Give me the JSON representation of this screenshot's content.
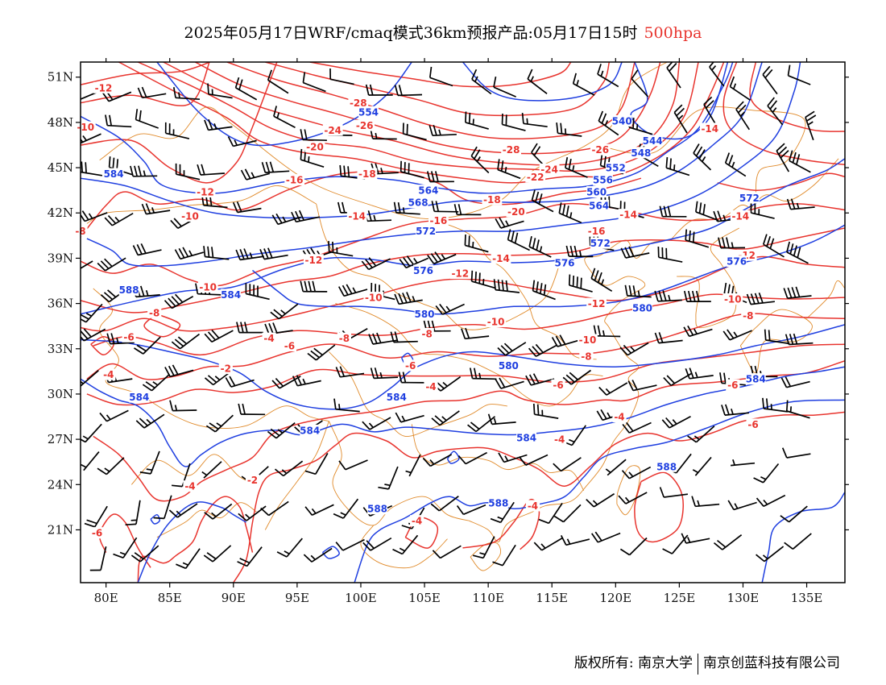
{
  "title": {
    "text": "2025年05月17日WRF/cmaq模式36km预报产品:05月17日15时",
    "level": "500hpa"
  },
  "axes": {
    "lon_ticks": [
      "80E",
      "85E",
      "90E",
      "95E",
      "100E",
      "105E",
      "110E",
      "115E",
      "120E",
      "125E",
      "130E",
      "135E"
    ],
    "lat_ticks": [
      "51N",
      "48N",
      "45N",
      "42N",
      "39N",
      "36N",
      "33N",
      "30N",
      "27N",
      "24N",
      "21N"
    ],
    "lon_range": [
      78,
      138
    ],
    "lat_range": [
      17.5,
      52
    ]
  },
  "colors": {
    "height_contours": "#1f3fe0",
    "temperature_contours": "#e8342e",
    "borders": "#e08a2a",
    "wind_barbs": "#000000"
  },
  "layers": [
    "geopotential-height",
    "temperature",
    "wind-barbs",
    "boundaries"
  ],
  "height_labels": [
    {
      "text": "584",
      "lon": 80.6,
      "lat": 44.6
    },
    {
      "text": "588",
      "lon": 81.8,
      "lat": 36.9
    },
    {
      "text": "584",
      "lon": 89.8,
      "lat": 36.6
    },
    {
      "text": "554",
      "lon": 100.6,
      "lat": 48.7
    },
    {
      "text": "540",
      "lon": 120.5,
      "lat": 48.1
    },
    {
      "text": "544",
      "lon": 122.9,
      "lat": 46.8
    },
    {
      "text": "548",
      "lon": 122.0,
      "lat": 46.0
    },
    {
      "text": "552",
      "lon": 120.0,
      "lat": 45.0
    },
    {
      "text": "556",
      "lon": 119.0,
      "lat": 44.2
    },
    {
      "text": "560",
      "lon": 118.5,
      "lat": 43.4
    },
    {
      "text": "564",
      "lon": 118.7,
      "lat": 42.5
    },
    {
      "text": "564",
      "lon": 105.3,
      "lat": 43.5
    },
    {
      "text": "568",
      "lon": 104.5,
      "lat": 42.7
    },
    {
      "text": "572",
      "lon": 105.1,
      "lat": 40.8
    },
    {
      "text": "572",
      "lon": 118.8,
      "lat": 40.0
    },
    {
      "text": "572",
      "lon": 130.5,
      "lat": 43.0
    },
    {
      "text": "576",
      "lon": 104.9,
      "lat": 38.2
    },
    {
      "text": "576",
      "lon": 116.0,
      "lat": 38.7
    },
    {
      "text": "576",
      "lon": 129.5,
      "lat": 38.8
    },
    {
      "text": "580",
      "lon": 122.1,
      "lat": 35.7
    },
    {
      "text": "580",
      "lon": 105.0,
      "lat": 35.3
    },
    {
      "text": "580",
      "lon": 111.6,
      "lat": 31.9
    },
    {
      "text": "584",
      "lon": 131.0,
      "lat": 31.0
    },
    {
      "text": "584",
      "lon": 102.8,
      "lat": 29.8
    },
    {
      "text": "584",
      "lon": 82.6,
      "lat": 29.8
    },
    {
      "text": "584",
      "lon": 96.0,
      "lat": 27.6
    },
    {
      "text": "584",
      "lon": 113.0,
      "lat": 27.1
    },
    {
      "text": "588",
      "lon": 124.0,
      "lat": 25.2
    },
    {
      "text": "588",
      "lon": 101.3,
      "lat": 22.4
    },
    {
      "text": "588",
      "lon": 110.8,
      "lat": 22.8
    }
  ],
  "temperature_labels": [
    {
      "text": "-12",
      "lon": 79.8,
      "lat": 50.3
    },
    {
      "text": "-10",
      "lon": 78.4,
      "lat": 47.7
    },
    {
      "text": "-8",
      "lon": 78.0,
      "lat": 40.8
    },
    {
      "text": "-12",
      "lon": 87.8,
      "lat": 43.4
    },
    {
      "text": "-10",
      "lon": 86.6,
      "lat": 41.8
    },
    {
      "text": "-10",
      "lon": 88.0,
      "lat": 37.1
    },
    {
      "text": "-8",
      "lon": 83.8,
      "lat": 35.4
    },
    {
      "text": "-6",
      "lon": 81.8,
      "lat": 33.8
    },
    {
      "text": "-4",
      "lon": 92.8,
      "lat": 33.7
    },
    {
      "text": "-6",
      "lon": 94.4,
      "lat": 33.2
    },
    {
      "text": "-8",
      "lon": 98.7,
      "lat": 33.7
    },
    {
      "text": "-2",
      "lon": 89.4,
      "lat": 31.7
    },
    {
      "text": "-4",
      "lon": 80.2,
      "lat": 31.3
    },
    {
      "text": "-4",
      "lon": 86.6,
      "lat": 23.9
    },
    {
      "text": "-2",
      "lon": 91.5,
      "lat": 24.3
    },
    {
      "text": "-6",
      "lon": 79.3,
      "lat": 20.8
    },
    {
      "text": "-28",
      "lon": 99.8,
      "lat": 49.3
    },
    {
      "text": "-24",
      "lon": 97.8,
      "lat": 47.5
    },
    {
      "text": "-26",
      "lon": 100.3,
      "lat": 47.8
    },
    {
      "text": "-20",
      "lon": 96.4,
      "lat": 46.4
    },
    {
      "text": "-18",
      "lon": 100.5,
      "lat": 44.6
    },
    {
      "text": "-16",
      "lon": 94.8,
      "lat": 44.2
    },
    {
      "text": "-14",
      "lon": 99.7,
      "lat": 41.8
    },
    {
      "text": "-16",
      "lon": 106.1,
      "lat": 41.5
    },
    {
      "text": "-12",
      "lon": 96.3,
      "lat": 38.9
    },
    {
      "text": "-10",
      "lon": 101.0,
      "lat": 36.4
    },
    {
      "text": "-12",
      "lon": 107.8,
      "lat": 38.0
    },
    {
      "text": "-8",
      "lon": 105.2,
      "lat": 34.0
    },
    {
      "text": "-10",
      "lon": 110.6,
      "lat": 34.8
    },
    {
      "text": "-6",
      "lon": 103.9,
      "lat": 31.9
    },
    {
      "text": "-4",
      "lon": 105.5,
      "lat": 30.5
    },
    {
      "text": "-28",
      "lon": 111.8,
      "lat": 46.2
    },
    {
      "text": "-26",
      "lon": 118.8,
      "lat": 46.2
    },
    {
      "text": "-24",
      "lon": 114.8,
      "lat": 44.9
    },
    {
      "text": "-22",
      "lon": 113.7,
      "lat": 44.4
    },
    {
      "text": "-20",
      "lon": 112.2,
      "lat": 42.1
    },
    {
      "text": "-18",
      "lon": 110.3,
      "lat": 42.9
    },
    {
      "text": "-16",
      "lon": 118.5,
      "lat": 40.8
    },
    {
      "text": "-14",
      "lon": 111.0,
      "lat": 39.0
    },
    {
      "text": "-14",
      "lon": 121.0,
      "lat": 41.9
    },
    {
      "text": "-12",
      "lon": 118.5,
      "lat": 36.0
    },
    {
      "text": "-10",
      "lon": 117.8,
      "lat": 33.6
    },
    {
      "text": "-8",
      "lon": 117.7,
      "lat": 32.5
    },
    {
      "text": "-6",
      "lon": 115.5,
      "lat": 30.6
    },
    {
      "text": "-4",
      "lon": 115.6,
      "lat": 27.0
    },
    {
      "text": "-4",
      "lon": 120.3,
      "lat": 28.5
    },
    {
      "text": "-4",
      "lon": 113.5,
      "lat": 22.6
    },
    {
      "text": "-4",
      "lon": 104.4,
      "lat": 21.6
    },
    {
      "text": "-14",
      "lon": 127.4,
      "lat": 47.6
    },
    {
      "text": "-14",
      "lon": 129.8,
      "lat": 41.8
    },
    {
      "text": "-12",
      "lon": 130.3,
      "lat": 39.2
    },
    {
      "text": "-10",
      "lon": 129.2,
      "lat": 36.3
    },
    {
      "text": "-8",
      "lon": 130.4,
      "lat": 35.2
    },
    {
      "text": "-6",
      "lon": 129.2,
      "lat": 30.6
    },
    {
      "text": "-6",
      "lon": 130.8,
      "lat": 28.0
    }
  ],
  "footer": {
    "copyright": "版权所有: 南京大学",
    "company": "南京创蓝科技有限公司"
  }
}
